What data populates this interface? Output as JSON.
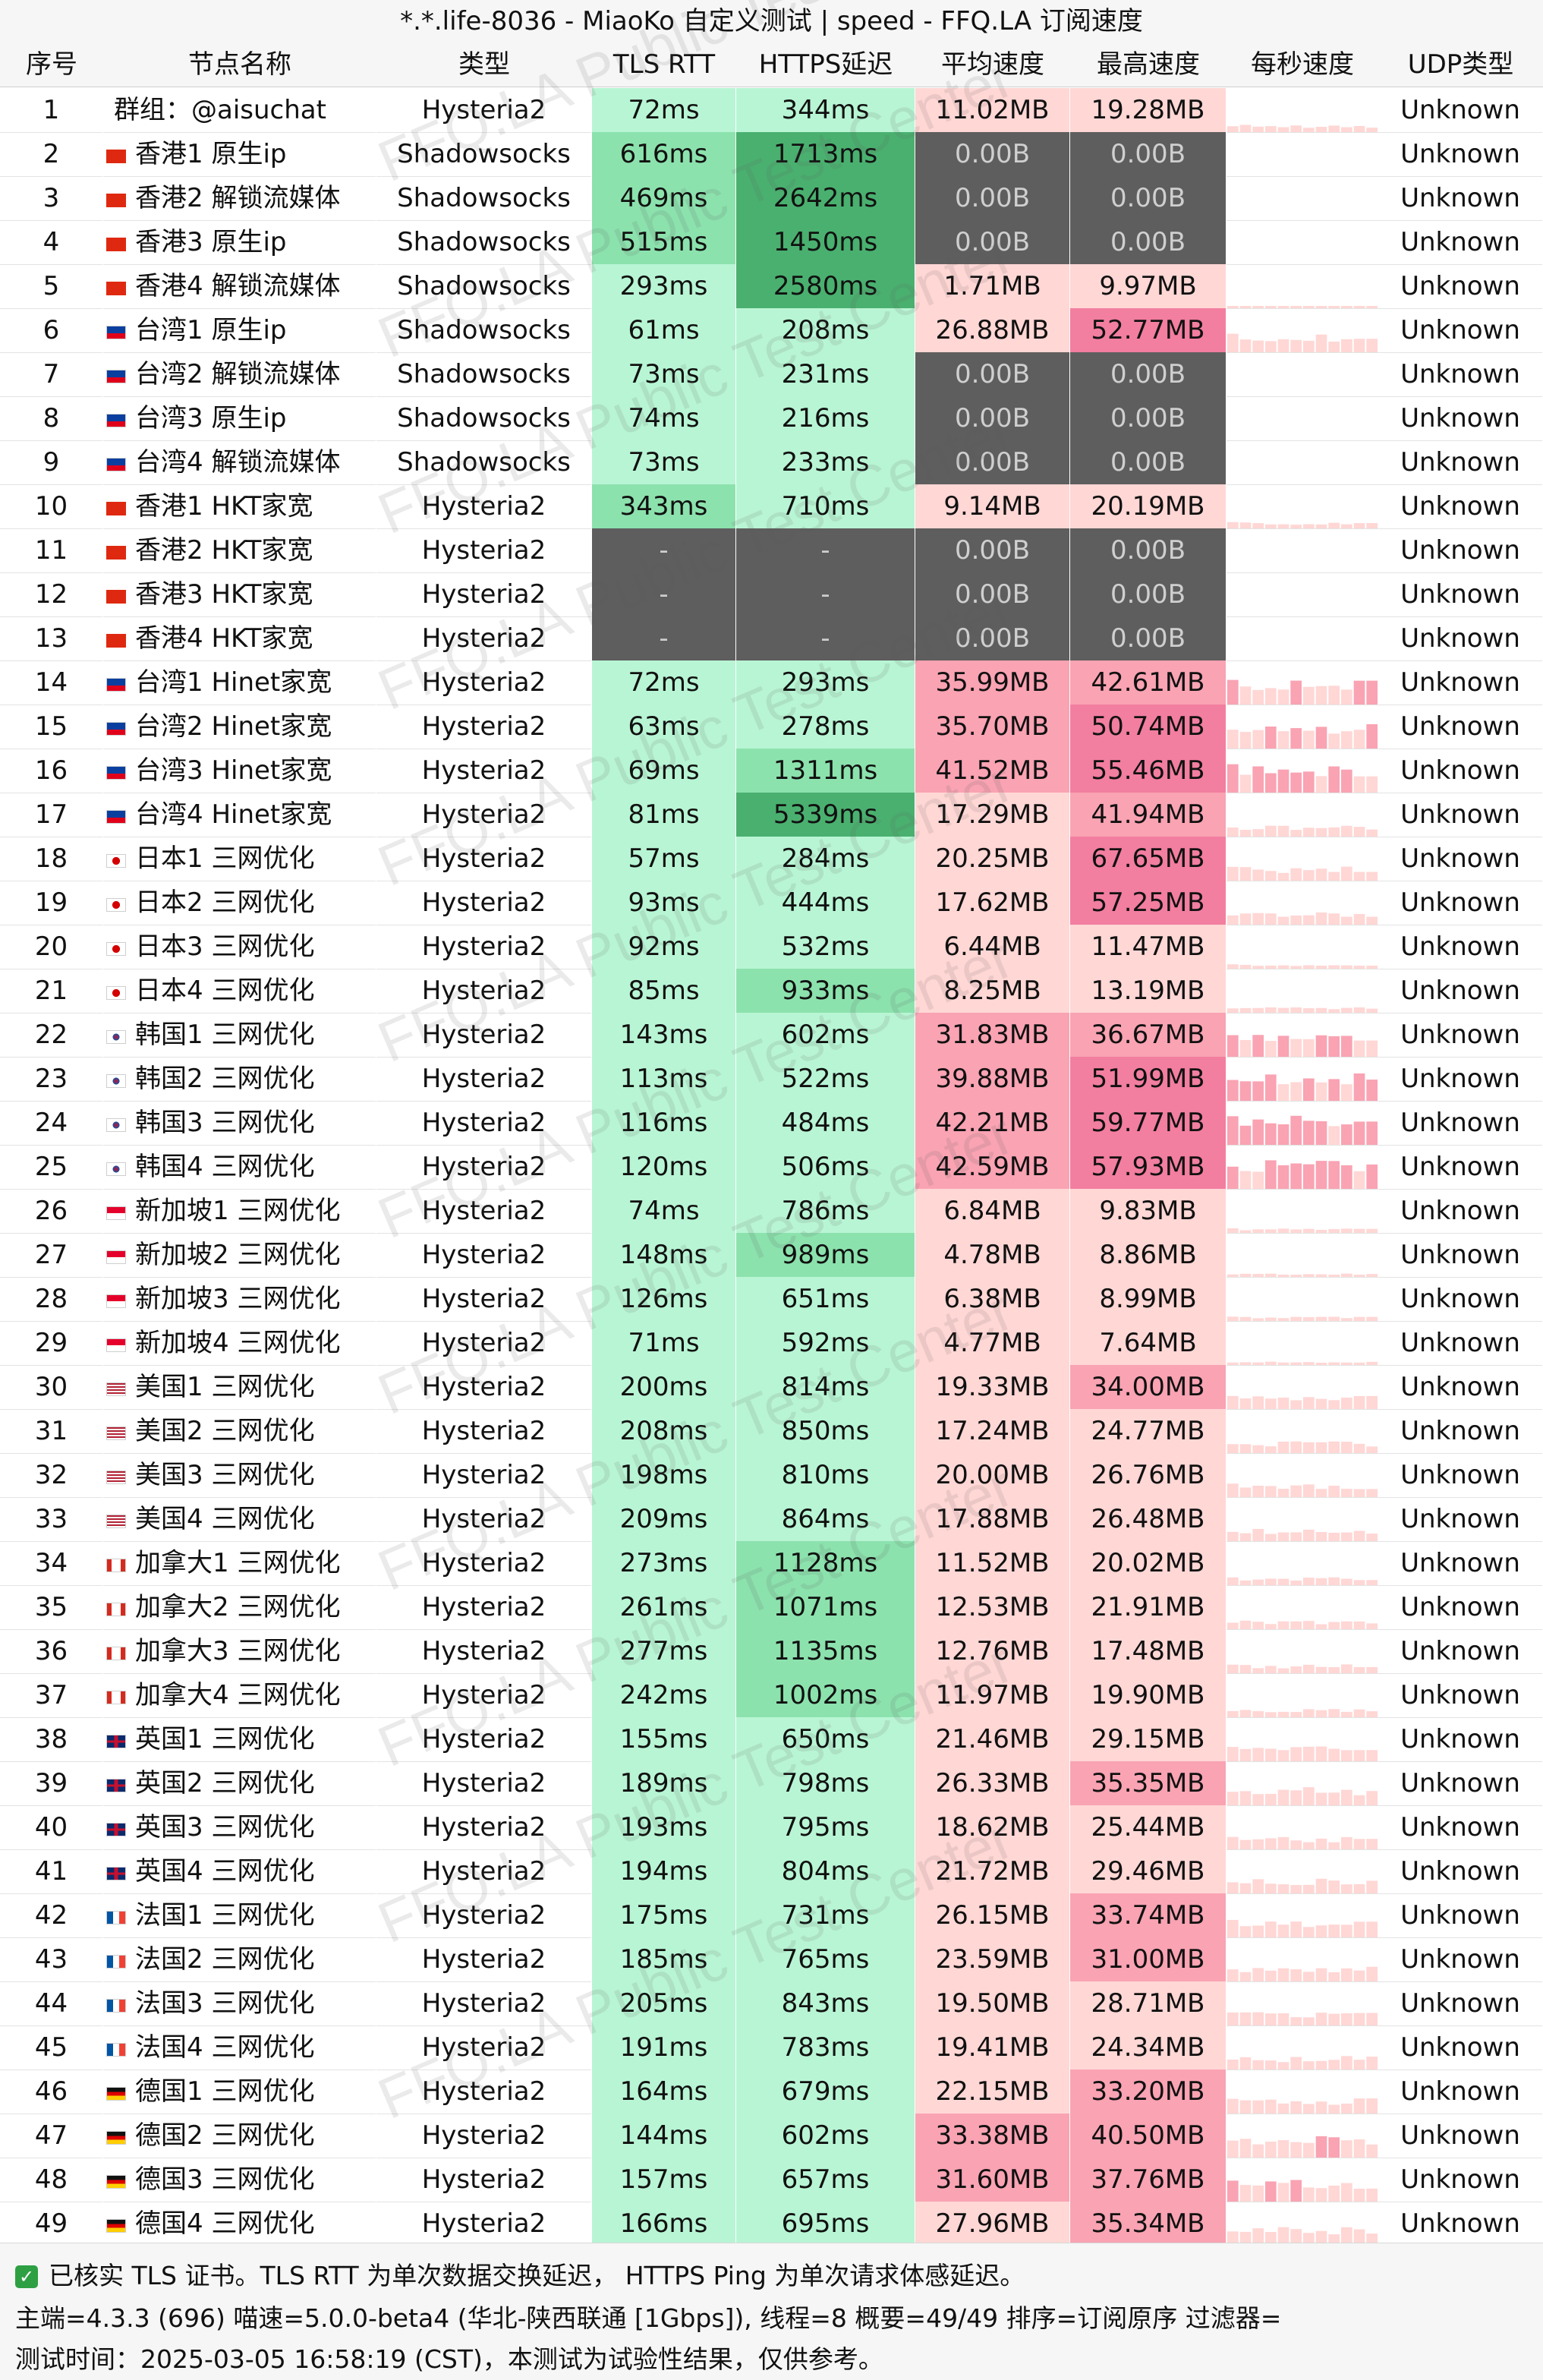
{
  "title": "*.*.life-8036 - MiaoKo 自定义测试 | speed - FFQ.LA 订阅速度",
  "columns": [
    "序号",
    "节点名称",
    "类型",
    "TLS RTT",
    "HTTPS延迟",
    "平均速度",
    "最高速度",
    "每秒速度",
    "UDP类型"
  ],
  "watermark": "FFQ.LA Public Test Center",
  "colors": {
    "rtt_light": "#b8f5d4",
    "rtt_mid": "#8ce2ad",
    "rtt_dark": "#4ab06f",
    "speed_light": "#ffd7d5",
    "speed_mid": "#f9a3b3",
    "speed_dark": "#f27ea0",
    "fail": "#5e5e5e"
  },
  "rows": [
    {
      "idx": "1",
      "flag": "",
      "name": "群组：@aisuchat",
      "type": "Hysteria2",
      "rtt": "72ms",
      "https": "344ms",
      "avg": "11.02MB",
      "max": "19.28MB",
      "udp": "Unknown"
    },
    {
      "idx": "2",
      "flag": "hk",
      "name": "香港1 原生ip",
      "type": "Shadowsocks",
      "rtt": "616ms",
      "https": "1713ms",
      "avg": "0.00B",
      "max": "0.00B",
      "udp": "Unknown"
    },
    {
      "idx": "3",
      "flag": "hk",
      "name": "香港2 解锁流媒体",
      "type": "Shadowsocks",
      "rtt": "469ms",
      "https": "2642ms",
      "avg": "0.00B",
      "max": "0.00B",
      "udp": "Unknown"
    },
    {
      "idx": "4",
      "flag": "hk",
      "name": "香港3 原生ip",
      "type": "Shadowsocks",
      "rtt": "515ms",
      "https": "1450ms",
      "avg": "0.00B",
      "max": "0.00B",
      "udp": "Unknown"
    },
    {
      "idx": "5",
      "flag": "hk",
      "name": "香港4 解锁流媒体",
      "type": "Shadowsocks",
      "rtt": "293ms",
      "https": "2580ms",
      "avg": "1.71MB",
      "max": "9.97MB",
      "udp": "Unknown"
    },
    {
      "idx": "6",
      "flag": "tw",
      "name": "台湾1 原生ip",
      "type": "Shadowsocks",
      "rtt": "61ms",
      "https": "208ms",
      "avg": "26.88MB",
      "max": "52.77MB",
      "udp": "Unknown"
    },
    {
      "idx": "7",
      "flag": "tw",
      "name": "台湾2 解锁流媒体",
      "type": "Shadowsocks",
      "rtt": "73ms",
      "https": "231ms",
      "avg": "0.00B",
      "max": "0.00B",
      "udp": "Unknown"
    },
    {
      "idx": "8",
      "flag": "tw",
      "name": "台湾3 原生ip",
      "type": "Shadowsocks",
      "rtt": "74ms",
      "https": "216ms",
      "avg": "0.00B",
      "max": "0.00B",
      "udp": "Unknown"
    },
    {
      "idx": "9",
      "flag": "tw",
      "name": "台湾4 解锁流媒体",
      "type": "Shadowsocks",
      "rtt": "73ms",
      "https": "233ms",
      "avg": "0.00B",
      "max": "0.00B",
      "udp": "Unknown"
    },
    {
      "idx": "10",
      "flag": "hk",
      "name": "香港1 HKT家宽",
      "type": "Hysteria2",
      "rtt": "343ms",
      "https": "710ms",
      "avg": "9.14MB",
      "max": "20.19MB",
      "udp": "Unknown"
    },
    {
      "idx": "11",
      "flag": "hk",
      "name": "香港2 HKT家宽",
      "type": "Hysteria2",
      "rtt": "-",
      "https": "-",
      "avg": "0.00B",
      "max": "0.00B",
      "udp": "Unknown"
    },
    {
      "idx": "12",
      "flag": "hk",
      "name": "香港3 HKT家宽",
      "type": "Hysteria2",
      "rtt": "-",
      "https": "-",
      "avg": "0.00B",
      "max": "0.00B",
      "udp": "Unknown"
    },
    {
      "idx": "13",
      "flag": "hk",
      "name": "香港4 HKT家宽",
      "type": "Hysteria2",
      "rtt": "-",
      "https": "-",
      "avg": "0.00B",
      "max": "0.00B",
      "udp": "Unknown"
    },
    {
      "idx": "14",
      "flag": "tw",
      "name": "台湾1 Hinet家宽",
      "type": "Hysteria2",
      "rtt": "72ms",
      "https": "293ms",
      "avg": "35.99MB",
      "max": "42.61MB",
      "udp": "Unknown"
    },
    {
      "idx": "15",
      "flag": "tw",
      "name": "台湾2 Hinet家宽",
      "type": "Hysteria2",
      "rtt": "63ms",
      "https": "278ms",
      "avg": "35.70MB",
      "max": "50.74MB",
      "udp": "Unknown"
    },
    {
      "idx": "16",
      "flag": "tw",
      "name": "台湾3 Hinet家宽",
      "type": "Hysteria2",
      "rtt": "69ms",
      "https": "1311ms",
      "avg": "41.52MB",
      "max": "55.46MB",
      "udp": "Unknown"
    },
    {
      "idx": "17",
      "flag": "tw",
      "name": "台湾4 Hinet家宽",
      "type": "Hysteria2",
      "rtt": "81ms",
      "https": "5339ms",
      "avg": "17.29MB",
      "max": "41.94MB",
      "udp": "Unknown"
    },
    {
      "idx": "18",
      "flag": "jp",
      "name": "日本1 三网优化",
      "type": "Hysteria2",
      "rtt": "57ms",
      "https": "284ms",
      "avg": "20.25MB",
      "max": "67.65MB",
      "udp": "Unknown"
    },
    {
      "idx": "19",
      "flag": "jp",
      "name": "日本2 三网优化",
      "type": "Hysteria2",
      "rtt": "93ms",
      "https": "444ms",
      "avg": "17.62MB",
      "max": "57.25MB",
      "udp": "Unknown"
    },
    {
      "idx": "20",
      "flag": "jp",
      "name": "日本3 三网优化",
      "type": "Hysteria2",
      "rtt": "92ms",
      "https": "532ms",
      "avg": "6.44MB",
      "max": "11.47MB",
      "udp": "Unknown"
    },
    {
      "idx": "21",
      "flag": "jp",
      "name": "日本4 三网优化",
      "type": "Hysteria2",
      "rtt": "85ms",
      "https": "933ms",
      "avg": "8.25MB",
      "max": "13.19MB",
      "udp": "Unknown"
    },
    {
      "idx": "22",
      "flag": "kr",
      "name": "韩国1 三网优化",
      "type": "Hysteria2",
      "rtt": "143ms",
      "https": "602ms",
      "avg": "31.83MB",
      "max": "36.67MB",
      "udp": "Unknown"
    },
    {
      "idx": "23",
      "flag": "kr",
      "name": "韩国2 三网优化",
      "type": "Hysteria2",
      "rtt": "113ms",
      "https": "522ms",
      "avg": "39.88MB",
      "max": "51.99MB",
      "udp": "Unknown"
    },
    {
      "idx": "24",
      "flag": "kr",
      "name": "韩国3 三网优化",
      "type": "Hysteria2",
      "rtt": "116ms",
      "https": "484ms",
      "avg": "42.21MB",
      "max": "59.77MB",
      "udp": "Unknown"
    },
    {
      "idx": "25",
      "flag": "kr",
      "name": "韩国4 三网优化",
      "type": "Hysteria2",
      "rtt": "120ms",
      "https": "506ms",
      "avg": "42.59MB",
      "max": "57.93MB",
      "udp": "Unknown"
    },
    {
      "idx": "26",
      "flag": "sg",
      "name": "新加坡1 三网优化",
      "type": "Hysteria2",
      "rtt": "74ms",
      "https": "786ms",
      "avg": "6.84MB",
      "max": "9.83MB",
      "udp": "Unknown"
    },
    {
      "idx": "27",
      "flag": "sg",
      "name": "新加坡2 三网优化",
      "type": "Hysteria2",
      "rtt": "148ms",
      "https": "989ms",
      "avg": "4.78MB",
      "max": "8.86MB",
      "udp": "Unknown"
    },
    {
      "idx": "28",
      "flag": "sg",
      "name": "新加坡3 三网优化",
      "type": "Hysteria2",
      "rtt": "126ms",
      "https": "651ms",
      "avg": "6.38MB",
      "max": "8.99MB",
      "udp": "Unknown"
    },
    {
      "idx": "29",
      "flag": "sg",
      "name": "新加坡4 三网优化",
      "type": "Hysteria2",
      "rtt": "71ms",
      "https": "592ms",
      "avg": "4.77MB",
      "max": "7.64MB",
      "udp": "Unknown"
    },
    {
      "idx": "30",
      "flag": "us",
      "name": "美国1 三网优化",
      "type": "Hysteria2",
      "rtt": "200ms",
      "https": "814ms",
      "avg": "19.33MB",
      "max": "34.00MB",
      "udp": "Unknown"
    },
    {
      "idx": "31",
      "flag": "us",
      "name": "美国2 三网优化",
      "type": "Hysteria2",
      "rtt": "208ms",
      "https": "850ms",
      "avg": "17.24MB",
      "max": "24.77MB",
      "udp": "Unknown"
    },
    {
      "idx": "32",
      "flag": "us",
      "name": "美国3 三网优化",
      "type": "Hysteria2",
      "rtt": "198ms",
      "https": "810ms",
      "avg": "20.00MB",
      "max": "26.76MB",
      "udp": "Unknown"
    },
    {
      "idx": "33",
      "flag": "us",
      "name": "美国4 三网优化",
      "type": "Hysteria2",
      "rtt": "209ms",
      "https": "864ms",
      "avg": "17.88MB",
      "max": "26.48MB",
      "udp": "Unknown"
    },
    {
      "idx": "34",
      "flag": "ca",
      "name": "加拿大1 三网优化",
      "type": "Hysteria2",
      "rtt": "273ms",
      "https": "1128ms",
      "avg": "11.52MB",
      "max": "20.02MB",
      "udp": "Unknown"
    },
    {
      "idx": "35",
      "flag": "ca",
      "name": "加拿大2 三网优化",
      "type": "Hysteria2",
      "rtt": "261ms",
      "https": "1071ms",
      "avg": "12.53MB",
      "max": "21.91MB",
      "udp": "Unknown"
    },
    {
      "idx": "36",
      "flag": "ca",
      "name": "加拿大3 三网优化",
      "type": "Hysteria2",
      "rtt": "277ms",
      "https": "1135ms",
      "avg": "12.76MB",
      "max": "17.48MB",
      "udp": "Unknown"
    },
    {
      "idx": "37",
      "flag": "ca",
      "name": "加拿大4 三网优化",
      "type": "Hysteria2",
      "rtt": "242ms",
      "https": "1002ms",
      "avg": "11.97MB",
      "max": "19.90MB",
      "udp": "Unknown"
    },
    {
      "idx": "38",
      "flag": "gb",
      "name": "英国1 三网优化",
      "type": "Hysteria2",
      "rtt": "155ms",
      "https": "650ms",
      "avg": "21.46MB",
      "max": "29.15MB",
      "udp": "Unknown"
    },
    {
      "idx": "39",
      "flag": "gb",
      "name": "英国2 三网优化",
      "type": "Hysteria2",
      "rtt": "189ms",
      "https": "798ms",
      "avg": "26.33MB",
      "max": "35.35MB",
      "udp": "Unknown"
    },
    {
      "idx": "40",
      "flag": "gb",
      "name": "英国3 三网优化",
      "type": "Hysteria2",
      "rtt": "193ms",
      "https": "795ms",
      "avg": "18.62MB",
      "max": "25.44MB",
      "udp": "Unknown"
    },
    {
      "idx": "41",
      "flag": "gb",
      "name": "英国4 三网优化",
      "type": "Hysteria2",
      "rtt": "194ms",
      "https": "804ms",
      "avg": "21.72MB",
      "max": "29.46MB",
      "udp": "Unknown"
    },
    {
      "idx": "42",
      "flag": "fr",
      "name": "法国1 三网优化",
      "type": "Hysteria2",
      "rtt": "175ms",
      "https": "731ms",
      "avg": "26.15MB",
      "max": "33.74MB",
      "udp": "Unknown"
    },
    {
      "idx": "43",
      "flag": "fr",
      "name": "法国2 三网优化",
      "type": "Hysteria2",
      "rtt": "185ms",
      "https": "765ms",
      "avg": "23.59MB",
      "max": "31.00MB",
      "udp": "Unknown"
    },
    {
      "idx": "44",
      "flag": "fr",
      "name": "法国3 三网优化",
      "type": "Hysteria2",
      "rtt": "205ms",
      "https": "843ms",
      "avg": "19.50MB",
      "max": "28.71MB",
      "udp": "Unknown"
    },
    {
      "idx": "45",
      "flag": "fr",
      "name": "法国4 三网优化",
      "type": "Hysteria2",
      "rtt": "191ms",
      "https": "783ms",
      "avg": "19.41MB",
      "max": "24.34MB",
      "udp": "Unknown"
    },
    {
      "idx": "46",
      "flag": "de",
      "name": "德国1 三网优化",
      "type": "Hysteria2",
      "rtt": "164ms",
      "https": "679ms",
      "avg": "22.15MB",
      "max": "33.20MB",
      "udp": "Unknown"
    },
    {
      "idx": "47",
      "flag": "de",
      "name": "德国2 三网优化",
      "type": "Hysteria2",
      "rtt": "144ms",
      "https": "602ms",
      "avg": "33.38MB",
      "max": "40.50MB",
      "udp": "Unknown"
    },
    {
      "idx": "48",
      "flag": "de",
      "name": "德国3 三网优化",
      "type": "Hysteria2",
      "rtt": "157ms",
      "https": "657ms",
      "avg": "31.60MB",
      "max": "37.76MB",
      "udp": "Unknown"
    },
    {
      "idx": "49",
      "flag": "de",
      "name": "德国4 三网优化",
      "type": "Hysteria2",
      "rtt": "166ms",
      "https": "695ms",
      "avg": "27.96MB",
      "max": "35.34MB",
      "udp": "Unknown"
    }
  ],
  "footer": {
    "note": "已核实 TLS 证书。TLS RTT 为单次数据交换延迟， HTTPS Ping 为单次请求体感延迟。",
    "info": "主端=4.3.3 (696) 喵速=5.0.0-beta4 (华北-陕西联通 [1Gbps]), 线程=8 概要=49/49 排序=订阅原序 过滤器=",
    "time": "测试时间：2025-03-05 16:58:19 (CST)，本测试为试验性结果，仅供参考。"
  }
}
